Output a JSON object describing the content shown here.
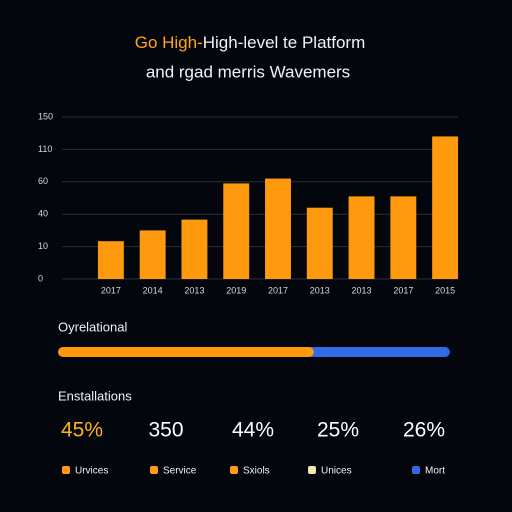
{
  "chart_data": {
    "type": "bar",
    "title_highlight": "Go High-",
    "title": "High-level te Platform",
    "subtitle": "and rgad merris Wavemers",
    "categories": [
      "2017",
      "2014",
      "2013",
      "2019",
      "2017",
      "2013",
      "2013",
      "2017",
      "2015"
    ],
    "values": [
      15,
      25,
      35,
      59,
      65,
      44,
      51,
      51,
      126
    ],
    "color": "#ff9a0f",
    "ylim": [
      0,
      150
    ],
    "yticks": [
      0,
      10,
      40,
      60,
      110,
      150
    ],
    "grid": true
  },
  "progress": {
    "label": "Oyrelational",
    "fraction": 0.64,
    "colors": [
      "#ff9a0f",
      "#2f6be6"
    ]
  },
  "stats": {
    "heading": "Enstallations",
    "items": [
      {
        "text": "45%",
        "color": "#ffb020"
      },
      {
        "text": "350",
        "color": "#ffffff"
      },
      {
        "text": "44%",
        "color": "#ffffff"
      },
      {
        "text": "25%",
        "color": "#ffffff"
      },
      {
        "text": "26%",
        "color": "#ffffff"
      }
    ]
  },
  "legend": [
    {
      "name": "Urvices",
      "color": "#ff9a0f"
    },
    {
      "name": "Service",
      "color": "#ff9a0f"
    },
    {
      "name": "Sxiols",
      "color": "#ff9a0f"
    },
    {
      "name": "Unices",
      "color": "#f3e7b0"
    },
    {
      "name": "Mort",
      "color": "#2f6be6"
    }
  ]
}
